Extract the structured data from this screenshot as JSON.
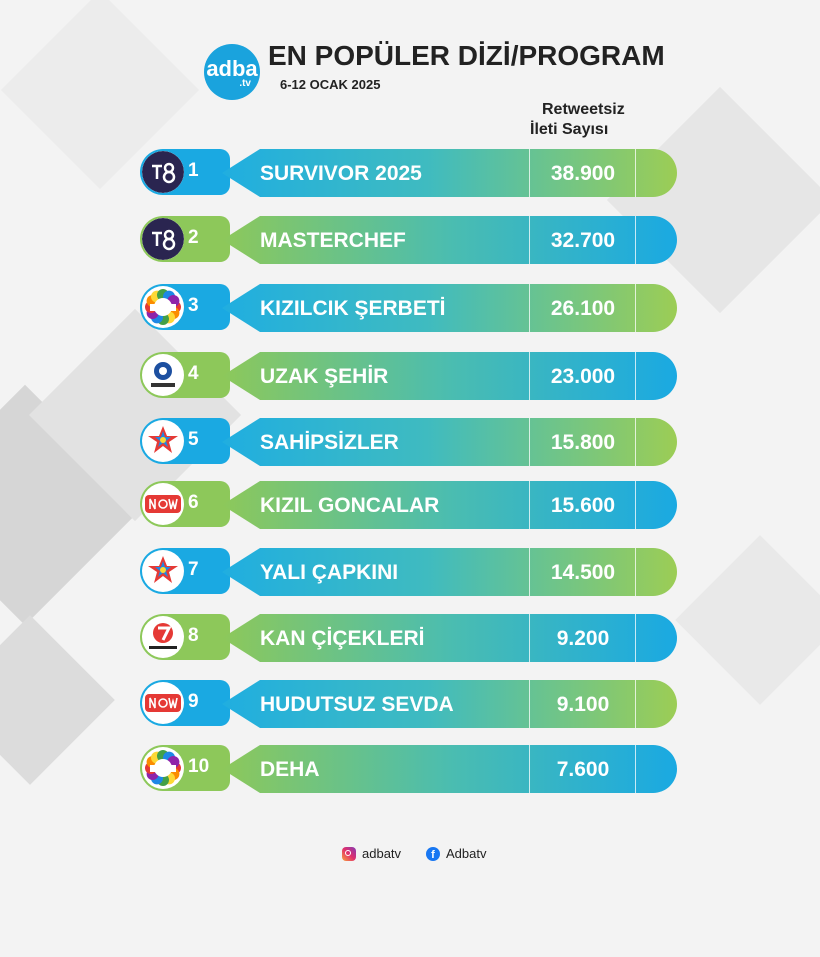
{
  "header": {
    "logo_brand": "adba",
    "logo_tld": ".tv",
    "title": "EN POPÜLER DİZİ/PROGRAM",
    "date": "6-12 OCAK 2025",
    "column_header_line1": "Retweetsiz",
    "column_header_line2": "İleti Sayısı"
  },
  "rows": [
    {
      "rank": "1",
      "channel_icon": "tv8-logo-icon",
      "name": "SURVIVOR 2025",
      "count": "38.900"
    },
    {
      "rank": "2",
      "channel_icon": "tv8-logo-icon",
      "name": "MASTERCHEF",
      "count": "32.700"
    },
    {
      "rank": "3",
      "channel_icon": "show-tv-logo-icon",
      "name": "KIZILCIK ŞERBETİ",
      "count": "26.100"
    },
    {
      "rank": "4",
      "channel_icon": "kanal-d-logo-icon",
      "name": "UZAK ŞEHİR",
      "count": "23.000"
    },
    {
      "rank": "5",
      "channel_icon": "star-tv-logo-icon",
      "name": "SAHİPSİZLER",
      "count": "15.800"
    },
    {
      "rank": "6",
      "channel_icon": "now-tv-logo-icon",
      "name": "KIZIL GONCALAR",
      "count": "15.600"
    },
    {
      "rank": "7",
      "channel_icon": "star-tv-logo-icon",
      "name": "YALI ÇAPKINI",
      "count": "14.500"
    },
    {
      "rank": "8",
      "channel_icon": "kanal-7-logo-icon",
      "name": "KAN ÇİÇEKLERİ",
      "count": "9.200"
    },
    {
      "rank": "9",
      "channel_icon": "now-tv-logo-icon",
      "name": "HUDUTSUZ SEVDA",
      "count": "9.100"
    },
    {
      "rank": "10",
      "channel_icon": "show-tv-logo-icon",
      "name": "DEHA",
      "count": "7.600"
    }
  ],
  "footer": {
    "instagram_handle": "adbatv",
    "facebook_handle": "Adbatv"
  },
  "colors": {
    "blue": "#1aa9e2",
    "green": "#8dc85a",
    "logo_blue": "#1aa3dd"
  }
}
